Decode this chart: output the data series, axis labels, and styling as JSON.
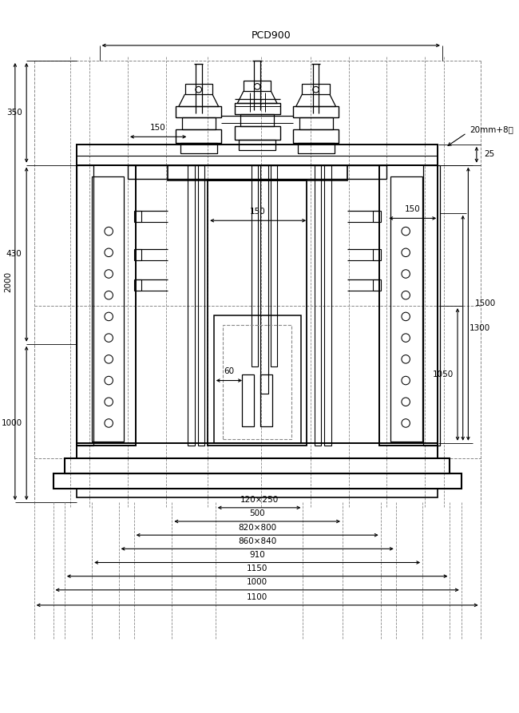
{
  "bg_color": "#ffffff",
  "line_color": "#000000",
  "fig_width": 6.5,
  "fig_height": 8.93,
  "dpi": 100,
  "annotations": {
    "pcd900": "PCD900",
    "note_20mm": "20mm+8개",
    "dim_350": "350",
    "dim_150a": "150",
    "dim_430": "430",
    "dim_2000": "2000",
    "dim_1000": "1000",
    "dim_1500": "1500",
    "dim_1050": "1050",
    "dim_1300": "1300",
    "dim_150b": "150",
    "dim_150c": "150",
    "dim_25": "25",
    "dim_60": "60",
    "dim_120x250": "120×250",
    "dim_500": "500",
    "dim_820x800": "820×800",
    "dim_860x840": "860×840",
    "dim_910": "910",
    "dim_1150": "1150",
    "dim_1000b": "1000",
    "dim_1100": "1100"
  }
}
